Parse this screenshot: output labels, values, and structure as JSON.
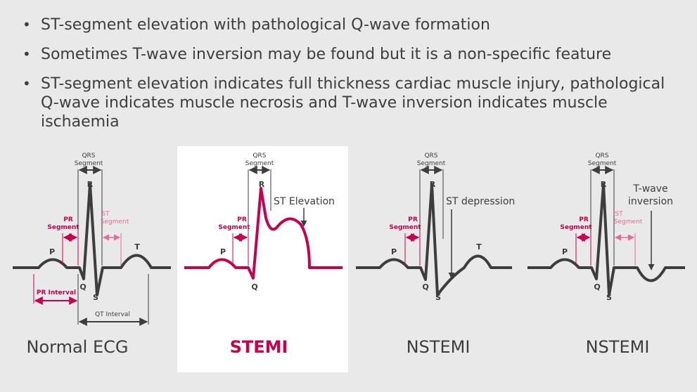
{
  "bullets": [
    "ST-segment elevation with pathological Q-wave formation",
    "Sometimes T-wave inversion may be found but it is a non-specific feature",
    "ST-segment elevation indicates full thickness cardiac muscle injury, pathological Q-wave indicates muscle necrosis and T-wave inversion indicates muscle ischaemia"
  ],
  "panels": [
    {
      "title": "Normal ECG",
      "labels": {
        "qrs_line1": "QRS",
        "qrs_line2": "Segment",
        "p": "P",
        "q": "Q",
        "r": "R",
        "s": "S",
        "t": "T",
        "pr_seg1": "PR",
        "pr_seg2": "Segment",
        "st_seg1": "ST",
        "st_seg2": "Segment",
        "pr_interval": "PR Interval",
        "qt_interval": "QT Interval"
      }
    },
    {
      "title": "STEMI",
      "labels": {
        "qrs_line1": "QRS",
        "qrs_line2": "Segment",
        "p": "P",
        "q": "Q",
        "r": "R",
        "pr_seg1": "PR",
        "pr_seg2": "Segment",
        "annotation": "ST Elevation"
      }
    },
    {
      "title": "NSTEMI",
      "labels": {
        "qrs_line1": "QRS",
        "qrs_line2": "Segment",
        "p": "P",
        "q": "Q",
        "r": "R",
        "s": "S",
        "t": "T",
        "pr_seg1": "PR",
        "pr_seg2": "Segment",
        "annotation": "ST depression"
      }
    },
    {
      "title": "NSTEMI",
      "labels": {
        "qrs_line1": "QRS",
        "qrs_line2": "Segment",
        "p": "P",
        "q": "Q",
        "r": "R",
        "s": "S",
        "pr_seg1": "PR",
        "pr_seg2": "Segment",
        "st_seg1": "ST",
        "st_seg2": "Segment",
        "annotation1": "T-wave",
        "annotation2": "inversion"
      }
    }
  ],
  "colors": {
    "trace_dark": "#3d3d3d",
    "trace_red": "#c8004e",
    "pink": "#e8689a",
    "background": "#e9e9e9"
  }
}
